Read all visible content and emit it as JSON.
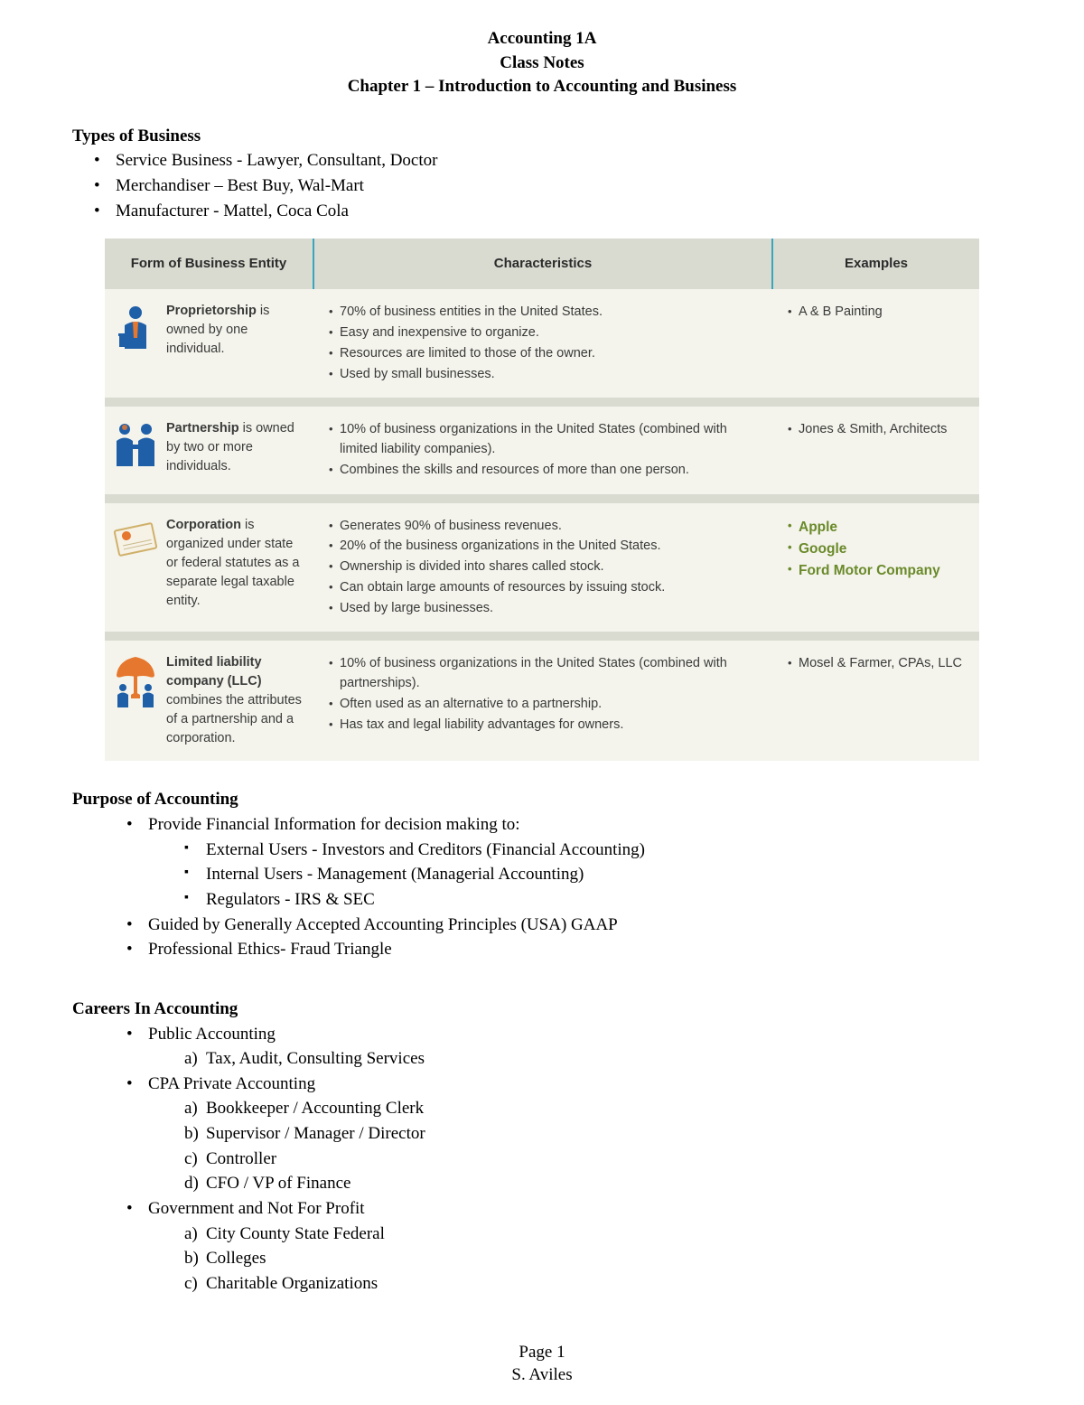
{
  "header": {
    "line1": "Accounting 1A",
    "line2": "Class Notes",
    "line3": "Chapter 1 – Introduction to Accounting and Business"
  },
  "types_of_business": {
    "title": "Types of Business",
    "items": [
      "Service Business - Lawyer, Consultant, Doctor",
      "Merchandiser – Best Buy, Wal-Mart",
      "Manufacturer - Mattel, Coca Cola"
    ]
  },
  "entity_table": {
    "header_bg": "#d9dbd1",
    "row_bg": "#f4f4ec",
    "separator_color": "#3aa5bf",
    "icon_blue": "#1f5fa8",
    "icon_orange": "#e6772e",
    "green_text": "#6a8a2a",
    "columns": [
      "Form of Business Entity",
      "Characteristics",
      "Examples"
    ],
    "rows": [
      {
        "icon": "proprietor",
        "form_bold": "Proprietorship",
        "form_rest": " is owned by one individual.",
        "characteristics": [
          "70% of business entities in the United States.",
          "Easy and inexpensive to organize.",
          "Resources are limited to those of the owner.",
          "Used by small businesses."
        ],
        "examples": [
          "A & B Painting"
        ],
        "examples_green": false
      },
      {
        "icon": "partnership",
        "form_bold": "Partnership",
        "form_rest": " is owned by two or more individuals.",
        "characteristics": [
          "10% of business organizations in the United States (combined with limited liability companies).",
          "Combines the skills and resources of more than one person."
        ],
        "examples": [
          "Jones & Smith, Architects"
        ],
        "examples_green": false
      },
      {
        "icon": "corporation",
        "form_bold": "Corporation",
        "form_rest": " is organized under state or federal statutes as a separate legal taxable entity.",
        "characteristics": [
          "Generates 90% of business revenues.",
          "20% of the business organizations in the United States.",
          "Ownership is divided into shares called stock.",
          "Can obtain large amounts of resources by issuing stock.",
          "Used by large businesses."
        ],
        "examples": [
          "Apple",
          "Google",
          "Ford Motor Company"
        ],
        "examples_green": true
      },
      {
        "icon": "llc",
        "form_bold": "Limited liability company (LLC)",
        "form_rest": " combines the attributes of a partnership and a corporation.",
        "characteristics": [
          "10% of business organizations in the United States (combined with partnerships).",
          "Often used as an alternative to a partnership.",
          "Has tax and legal liability advantages for owners."
        ],
        "examples": [
          "Mosel & Farmer, CPAs, LLC"
        ],
        "examples_green": false
      }
    ]
  },
  "purpose": {
    "title": "Purpose of Accounting",
    "items": [
      {
        "text": "Provide Financial Information for decision making to:",
        "sub": [
          "External Users - Investors and Creditors (Financial Accounting)",
          "Internal Users - Management (Managerial Accounting)",
          "Regulators - IRS & SEC"
        ]
      },
      {
        "text": "Guided by Generally Accepted Accounting Principles (USA) GAAP"
      },
      {
        "text": "Professional Ethics- Fraud Triangle"
      }
    ]
  },
  "careers": {
    "title": "Careers In Accounting",
    "items": [
      {
        "text": "Public Accounting",
        "alpha": [
          "Tax, Audit, Consulting Services"
        ]
      },
      {
        "text": "CPA Private Accounting",
        "alpha": [
          "Bookkeeper / Accounting Clerk",
          "Supervisor / Manager / Director",
          "Controller",
          "CFO / VP of Finance"
        ]
      },
      {
        "text": "Government and Not For Profit",
        "alpha": [
          "City County State Federal",
          "Colleges",
          "Charitable Organizations"
        ]
      }
    ]
  },
  "footer": {
    "page": "Page 1",
    "author": "S. Aviles"
  }
}
